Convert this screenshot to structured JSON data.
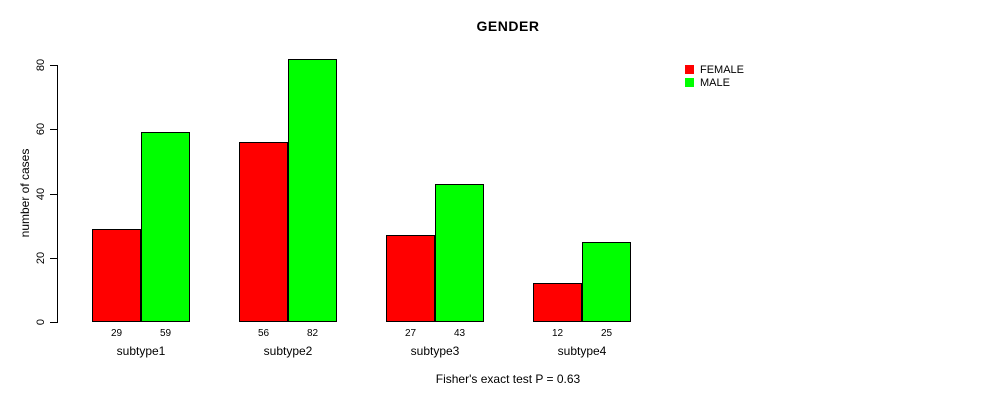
{
  "chart_data": {
    "type": "bar",
    "title": "GENDER",
    "ylabel": "number of cases",
    "xlabel": "",
    "categories": [
      "subtype1",
      "subtype2",
      "subtype3",
      "subtype4"
    ],
    "series": [
      {
        "name": "FEMALE",
        "color": "#ff0000",
        "values": [
          29,
          56,
          27,
          12
        ]
      },
      {
        "name": "MALE",
        "color": "#00ff00",
        "values": [
          59,
          82,
          43,
          25
        ]
      }
    ],
    "ylim": [
      0,
      80
    ],
    "yticks": [
      0,
      20,
      40,
      60,
      80
    ],
    "value_labels_shown": true,
    "grid": false,
    "legend_position": "right",
    "annotation": "Fisher's exact test P = 0.63"
  },
  "colors": {
    "female": "#ff0000",
    "male": "#00ff00",
    "axis": "#000000",
    "background": "#ffffff"
  }
}
